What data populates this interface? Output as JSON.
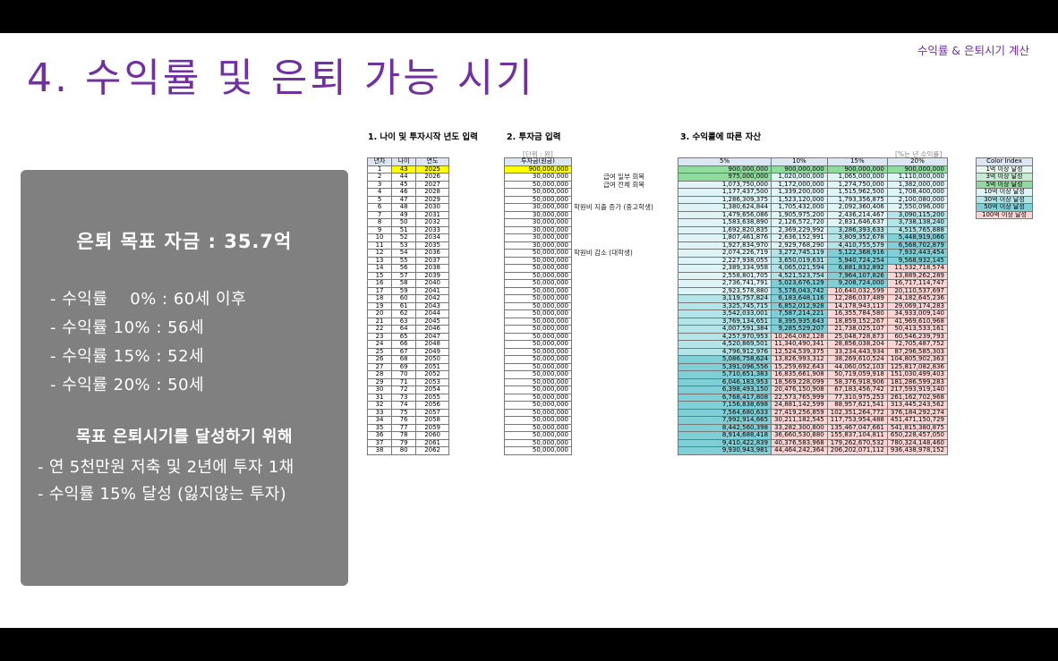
{
  "slide": {
    "tag": "수익률 & 은퇴시기 계산",
    "title": "4. 수익률 및 은퇴 가능 시기"
  },
  "panel": {
    "goal": "은퇴 목표 자금 : 35.7억",
    "rates": [
      "- 수익률    0% : 60세 이후",
      "- 수익률 10% : 56세",
      "- 수익률 15% : 52세",
      "- 수익률 20% : 50세"
    ],
    "subheading": "목표 은퇴시기를 달성하기 위해",
    "tips": [
      "- 연 5천만원 저축 및 2년에 투자 1채",
      "- 수익률 15% 달성 (잃지않는 투자)"
    ]
  },
  "sections": {
    "s1": "1. 나이 및 투자시작 년도 입력",
    "s2": "2. 투자금 입력",
    "s3": "3. 수익률에 따른 자산"
  },
  "units": {
    "won": "[단위 : 원]",
    "yearly": "[%는 년 수익률]"
  },
  "headers": {
    "t1": [
      "년차",
      "나이",
      "연도"
    ],
    "t2": "투자금(원금)",
    "t3": [
      "5%",
      "10%",
      "15%",
      "20%"
    ],
    "t4": "Color Index"
  },
  "notes": [
    {
      "text": "급여 일부 회복",
      "row": 2
    },
    {
      "text": "급여 전체 회복",
      "row": 3
    },
    {
      "text": "학원비 지출 증가 (중고학생)",
      "row": 6
    },
    {
      "text": "학원비 감소 (대학생)",
      "row": 12
    }
  ],
  "legend": [
    "1억 이상 달성",
    "3억 이상 달성",
    "5억 이상 달성",
    "10억 이상 달성",
    "30억 이상 달성",
    "50억 이상 달성",
    "100억 이상 달성"
  ],
  "rows": [
    [
      "1",
      "43",
      "2025",
      "900,000,000",
      "900,000,000",
      "900,000,000",
      "900,000,000",
      "900,000,000"
    ],
    [
      "2",
      "44",
      "2026",
      "30,000,000",
      "975,000,000",
      "1,020,000,000",
      "1,065,000,000",
      "1,110,000,000"
    ],
    [
      "3",
      "45",
      "2027",
      "50,000,000",
      "1,073,750,000",
      "1,172,000,000",
      "1,274,750,000",
      "1,382,000,000"
    ],
    [
      "4",
      "46",
      "2028",
      "50,000,000",
      "1,177,437,500",
      "1,339,200,000",
      "1,515,962,500",
      "1,708,400,000"
    ],
    [
      "5",
      "47",
      "2029",
      "50,000,000",
      "1,286,309,375",
      "1,523,120,000",
      "1,793,356,875",
      "2,100,080,000"
    ],
    [
      "6",
      "48",
      "2030",
      "30,000,000",
      "1,380,624,844",
      "1,705,432,000",
      "2,092,360,406",
      "2,550,096,000"
    ],
    [
      "7",
      "49",
      "2031",
      "30,000,000",
      "1,479,656,086",
      "1,905,975,200",
      "2,436,214,467",
      "3,090,115,200"
    ],
    [
      "8",
      "50",
      "2032",
      "30,000,000",
      "1,583,638,890",
      "2,126,572,720",
      "2,831,646,637",
      "3,738,138,240"
    ],
    [
      "9",
      "51",
      "2033",
      "30,000,000",
      "1,692,820,835",
      "2,369,229,992",
      "3,286,393,633",
      "4,515,765,888"
    ],
    [
      "10",
      "52",
      "2034",
      "30,000,000",
      "1,807,461,876",
      "2,636,152,991",
      "3,809,352,678",
      "5,448,919,066"
    ],
    [
      "11",
      "53",
      "2035",
      "30,000,000",
      "1,927,834,970",
      "2,929,768,290",
      "4,410,755,579",
      "6,568,702,879"
    ],
    [
      "12",
      "54",
      "2036",
      "50,000,000",
      "2,074,226,719",
      "3,272,745,119",
      "5,122,368,916",
      "7,932,443,454"
    ],
    [
      "13",
      "55",
      "2037",
      "50,000,000",
      "2,227,938,055",
      "3,650,019,631",
      "5,940,724,254",
      "9,568,932,145"
    ],
    [
      "14",
      "56",
      "2038",
      "50,000,000",
      "2,389,334,958",
      "4,065,021,594",
      "6,881,832,892",
      "11,532,718,574"
    ],
    [
      "15",
      "57",
      "2039",
      "50,000,000",
      "2,558,801,705",
      "4,521,523,754",
      "7,964,107,826",
      "13,889,262,289"
    ],
    [
      "16",
      "58",
      "2040",
      "50,000,000",
      "2,736,741,791",
      "5,023,676,129",
      "9,208,724,000",
      "16,717,114,747"
    ],
    [
      "17",
      "59",
      "2041",
      "50,000,000",
      "2,923,578,880",
      "5,576,043,742",
      "10,640,032,599",
      "20,110,537,697"
    ],
    [
      "18",
      "60",
      "2042",
      "50,000,000",
      "3,119,757,824",
      "6,183,648,116",
      "12,286,037,489",
      "24,182,645,236"
    ],
    [
      "19",
      "61",
      "2043",
      "50,000,000",
      "3,325,745,715",
      "6,852,012,928",
      "14,178,943,113",
      "29,069,174,283"
    ],
    [
      "20",
      "62",
      "2044",
      "50,000,000",
      "3,542,033,001",
      "7,587,214,221",
      "16,355,784,580",
      "34,933,009,140"
    ],
    [
      "21",
      "63",
      "2045",
      "50,000,000",
      "3,769,134,651",
      "8,395,935,643",
      "18,859,152,267",
      "41,969,610,968"
    ],
    [
      "22",
      "64",
      "2046",
      "50,000,000",
      "4,007,591,384",
      "9,285,529,207",
      "21,738,025,107",
      "50,413,533,161"
    ],
    [
      "23",
      "65",
      "2047",
      "50,000,000",
      "4,257,970,953",
      "10,264,082,128",
      "25,048,728,873",
      "60,546,239,793"
    ],
    [
      "24",
      "66",
      "2048",
      "50,000,000",
      "4,520,869,501",
      "11,340,490,341",
      "28,856,038,204",
      "72,705,487,752"
    ],
    [
      "25",
      "67",
      "2049",
      "50,000,000",
      "4,796,912,976",
      "12,524,539,375",
      "33,234,443,934",
      "87,296,585,303"
    ],
    [
      "26",
      "68",
      "2050",
      "50,000,000",
      "5,086,758,624",
      "13,826,993,312",
      "38,269,610,524",
      "104,805,902,363"
    ],
    [
      "27",
      "69",
      "2051",
      "50,000,000",
      "5,391,096,556",
      "15,259,692,643",
      "44,060,052,103",
      "125,817,082,836"
    ],
    [
      "28",
      "70",
      "2052",
      "50,000,000",
      "5,710,651,383",
      "16,835,661,908",
      "50,719,059,918",
      "151,030,499,403"
    ],
    [
      "29",
      "71",
      "2053",
      "50,000,000",
      "6,046,183,953",
      "18,569,228,099",
      "58,376,918,906",
      "181,286,599,283"
    ],
    [
      "30",
      "72",
      "2054",
      "50,000,000",
      "6,398,493,150",
      "20,476,150,908",
      "67,183,456,742",
      "217,593,919,140"
    ],
    [
      "31",
      "73",
      "2055",
      "50,000,000",
      "6,768,417,808",
      "22,573,765,999",
      "77,310,975,253",
      "261,162,702,968"
    ],
    [
      "32",
      "74",
      "2056",
      "50,000,000",
      "7,156,838,698",
      "24,881,142,599",
      "88,957,621,541",
      "313,445,243,562"
    ],
    [
      "33",
      "75",
      "2057",
      "50,000,000",
      "7,564,680,633",
      "27,419,256,859",
      "102,351,264,772",
      "376,184,292,274"
    ],
    [
      "34",
      "76",
      "2058",
      "50,000,000",
      "7,992,914,665",
      "30,211,182,545",
      "117,753,954,488",
      "451,471,150,729"
    ],
    [
      "35",
      "77",
      "2059",
      "50,000,000",
      "8,442,560,398",
      "33,282,300,800",
      "135,467,047,661",
      "541,815,380,875"
    ],
    [
      "36",
      "78",
      "2060",
      "50,000,000",
      "8,914,688,418",
      "36,660,530,880",
      "155,837,104,811",
      "650,228,457,050"
    ],
    [
      "37",
      "79",
      "2061",
      "50,000,000",
      "9,410,422,839",
      "40,376,583,968",
      "179,262,670,532",
      "780,324,148,460"
    ],
    [
      "38",
      "80",
      "2062",
      "50,000,000",
      "9,930,943,981",
      "44,464,242,364",
      "206,202,071,112",
      "936,438,978,152"
    ]
  ],
  "colors": {
    "title": "#7030a0",
    "highlight": "#ffff00",
    "panel": "#808080"
  }
}
